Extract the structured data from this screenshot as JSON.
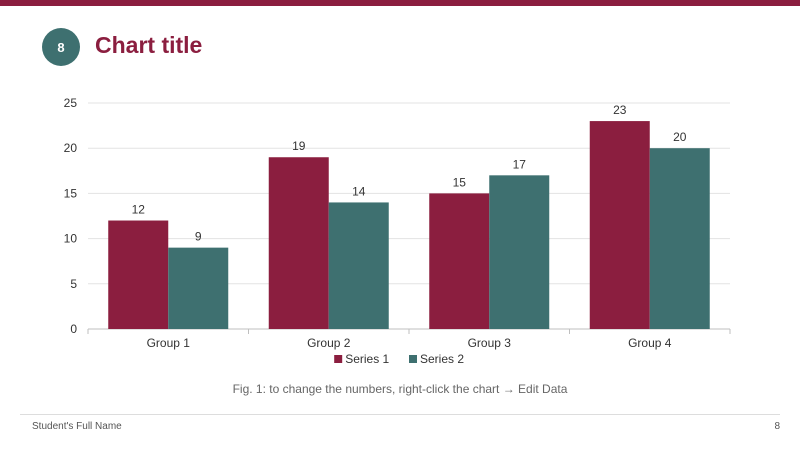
{
  "slide": {
    "number": "8",
    "title": "Chart title",
    "caption": "Fig. 1: to change the numbers, right-click the chart → Edit Data",
    "footer_name": "Student's Full Name",
    "footer_page": "8"
  },
  "colors": {
    "accent": "#8b1e3f",
    "teal": "#3e7070"
  },
  "chart_data": {
    "type": "bar",
    "title": "",
    "xlabel": "",
    "ylabel": "",
    "categories": [
      "Group 1",
      "Group 2",
      "Group 3",
      "Group 4"
    ],
    "series": [
      {
        "name": "Series 1",
        "color": "#8b1e3f",
        "values": [
          12,
          19,
          15,
          23
        ]
      },
      {
        "name": "Series 2",
        "color": "#3e7070",
        "values": [
          9,
          14,
          17,
          20
        ]
      }
    ],
    "ylim": [
      0,
      25
    ],
    "yticks": [
      0,
      5,
      10,
      15,
      20,
      25
    ],
    "grid": true,
    "legend": "bottom",
    "data_labels": true
  }
}
